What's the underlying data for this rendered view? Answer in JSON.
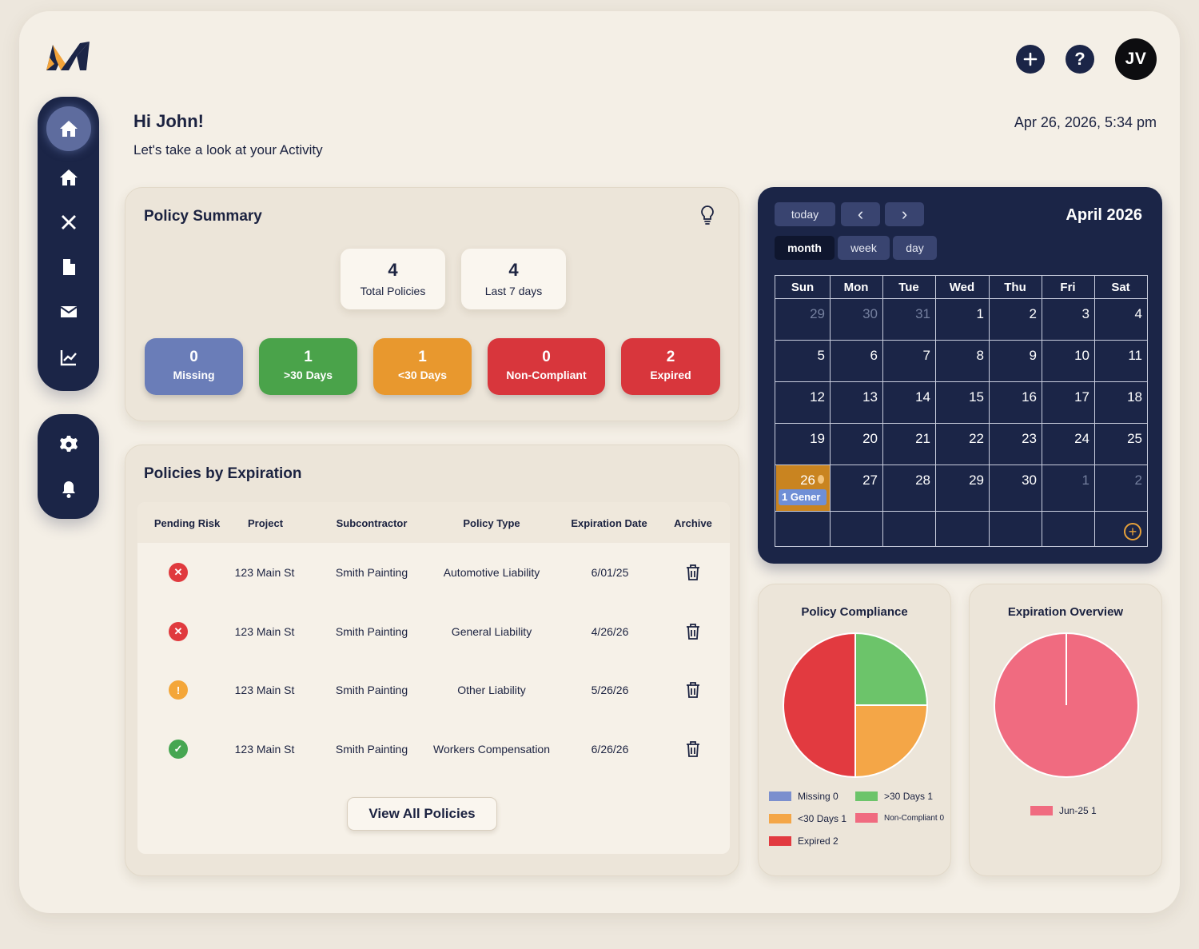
{
  "header": {
    "logo_icon": "m-logo-icon",
    "add_icon": "plus-icon",
    "help_icon": "question-icon",
    "help_label": "?",
    "avatar_initials": "JV"
  },
  "sidebar": {
    "main": [
      {
        "name": "dashboard",
        "icon": "home-icon",
        "active": true
      },
      {
        "name": "home",
        "icon": "home-icon",
        "active": false
      },
      {
        "name": "tools",
        "icon": "tools-icon",
        "active": false
      },
      {
        "name": "documents",
        "icon": "document-icon",
        "active": false
      },
      {
        "name": "messages",
        "icon": "mail-icon",
        "active": false
      },
      {
        "name": "analytics",
        "icon": "chart-line-icon",
        "active": false
      }
    ],
    "secondary": [
      {
        "name": "settings",
        "icon": "gear-icon"
      },
      {
        "name": "notifications",
        "icon": "bell-icon"
      }
    ]
  },
  "greeting": {
    "title": "Hi John!",
    "subtitle": "Let's take a look at your Activity",
    "datetime": "Apr 26, 2026, 5:34 pm"
  },
  "policy_summary": {
    "title": "Policy Summary",
    "stats": [
      {
        "value": "4",
        "label": "Total Policies"
      },
      {
        "value": "4",
        "label": "Last 7 days"
      }
    ],
    "statuses": [
      {
        "value": "0",
        "label": "Missing",
        "color": "#6a7db8"
      },
      {
        "value": "1",
        "label": ">30 Days",
        "color": "#4aa34a"
      },
      {
        "value": "1",
        "label": "<30 Days",
        "color": "#e8982e"
      },
      {
        "value": "0",
        "label": "Non-Compliant",
        "color": "#d8363c"
      },
      {
        "value": "2",
        "label": "Expired",
        "color": "#d8363c"
      }
    ]
  },
  "policies_by_expiration": {
    "title": "Policies by Expiration",
    "columns": [
      "Pending Risk",
      "Project",
      "Subcontractor",
      "Policy Type",
      "Expiration Date",
      "Archive"
    ],
    "rows": [
      {
        "risk": "error",
        "risk_glyph": "✕",
        "risk_color": "#e03a3e",
        "project": "123 Main St",
        "subcontractor": "Smith Painting",
        "policy_type": "Automotive Liability",
        "expiration": "6/01/25"
      },
      {
        "risk": "error",
        "risk_glyph": "✕",
        "risk_color": "#e03a3e",
        "project": "123 Main St",
        "subcontractor": "Smith Painting",
        "policy_type": "General Liability",
        "expiration": "4/26/26"
      },
      {
        "risk": "warning",
        "risk_glyph": "!",
        "risk_color": "#f4a638",
        "project": "123 Main St",
        "subcontractor": "Smith Painting",
        "policy_type": "Other Liability",
        "expiration": "5/26/26"
      },
      {
        "risk": "ok",
        "risk_glyph": "✓",
        "risk_color": "#46a651",
        "project": "123 Main St",
        "subcontractor": "Smith Painting",
        "policy_type": "Workers Compensation",
        "expiration": "6/26/26"
      }
    ],
    "view_all_label": "View All Policies"
  },
  "calendar": {
    "title": "April 2026",
    "buttons": {
      "today": "today",
      "prev": "‹",
      "next": "›",
      "month": "month",
      "week": "week",
      "day": "day"
    },
    "active_view": "month",
    "weekdays": [
      "Sun",
      "Mon",
      "Tue",
      "Wed",
      "Thu",
      "Fri",
      "Sat"
    ],
    "weeks": [
      [
        {
          "d": "29",
          "muted": true
        },
        {
          "d": "30",
          "muted": true
        },
        {
          "d": "31",
          "muted": true
        },
        {
          "d": "1"
        },
        {
          "d": "2"
        },
        {
          "d": "3"
        },
        {
          "d": "4"
        }
      ],
      [
        {
          "d": "5"
        },
        {
          "d": "6"
        },
        {
          "d": "7"
        },
        {
          "d": "8"
        },
        {
          "d": "9"
        },
        {
          "d": "10"
        },
        {
          "d": "11"
        }
      ],
      [
        {
          "d": "12"
        },
        {
          "d": "13"
        },
        {
          "d": "14"
        },
        {
          "d": "15"
        },
        {
          "d": "16"
        },
        {
          "d": "17"
        },
        {
          "d": "18"
        }
      ],
      [
        {
          "d": "19"
        },
        {
          "d": "20"
        },
        {
          "d": "21"
        },
        {
          "d": "22"
        },
        {
          "d": "23"
        },
        {
          "d": "24"
        },
        {
          "d": "25"
        }
      ],
      [
        {
          "d": "26",
          "today": true
        },
        {
          "d": "27"
        },
        {
          "d": "28"
        },
        {
          "d": "29"
        },
        {
          "d": "30"
        },
        {
          "d": "1",
          "muted": true
        },
        {
          "d": "2",
          "muted": true
        }
      ],
      [
        {
          "d": ""
        },
        {
          "d": ""
        },
        {
          "d": ""
        },
        {
          "d": ""
        },
        {
          "d": ""
        },
        {
          "d": ""
        },
        {
          "d": ""
        }
      ]
    ],
    "event": {
      "label": "1 Gener",
      "color": "#6f8fd6"
    },
    "today_color": "#c98420",
    "add_label": "+"
  },
  "chart_data": [
    {
      "type": "pie",
      "title": "Policy Compliance",
      "categories": [
        "Missing",
        ">30 Days",
        "<30 Days",
        "Non-Compliant",
        "Expired"
      ],
      "values": [
        0,
        1,
        1,
        0,
        2
      ],
      "colors": [
        "#7b8fce",
        "#6cc46a",
        "#f4a647",
        "#f06b80",
        "#e23a40"
      ],
      "legend": [
        {
          "label": "Missing 0",
          "color": "#7b8fce"
        },
        {
          "label": ">30 Days 1",
          "color": "#6cc46a"
        },
        {
          "label": "<30 Days 1",
          "color": "#f4a647"
        },
        {
          "label": "Non-Compliant 0",
          "color": "#f06b80"
        },
        {
          "label": "Expired 2",
          "color": "#e23a40"
        }
      ],
      "legend_position": "bottom"
    },
    {
      "type": "pie",
      "title": "Expiration Overview",
      "categories": [
        "Jun-25"
      ],
      "values": [
        1
      ],
      "colors": [
        "#f06b80"
      ],
      "legend": [
        {
          "label": "Jun-25 1",
          "color": "#f06b80"
        }
      ],
      "legend_position": "bottom"
    }
  ]
}
